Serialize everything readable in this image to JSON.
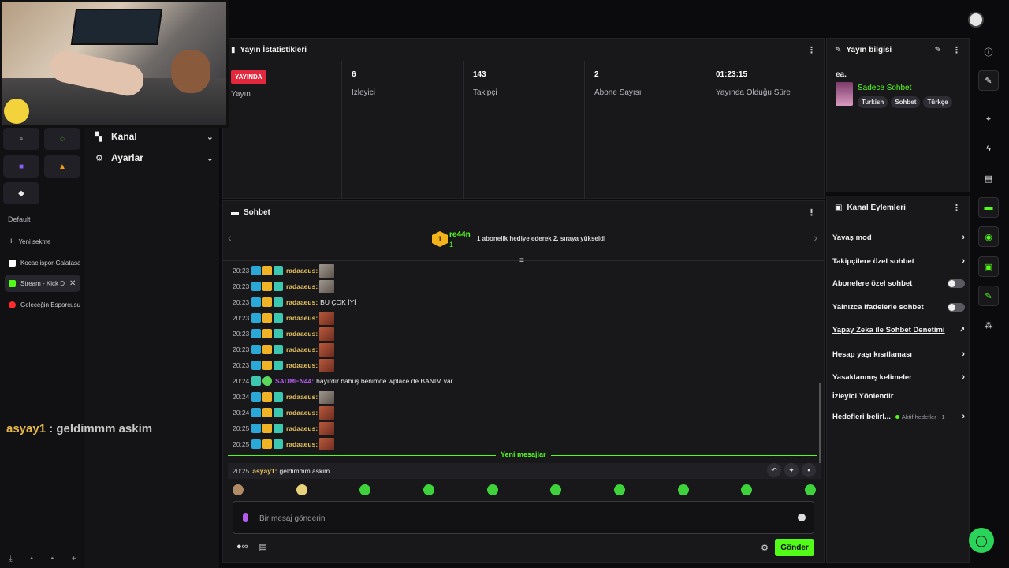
{
  "browser_sidebar": {
    "section_label": "Default",
    "tabs": [
      {
        "label": "Yeni sekme",
        "icon": "plus-icon"
      },
      {
        "label": "Kocaelispor-Galatasaray",
        "icon": "f-logo-icon"
      },
      {
        "label": "Stream - Kick D",
        "icon": "kick-logo-icon",
        "active": true
      },
      {
        "label": "Geleceğin Esporcusu",
        "icon": "youtube-icon"
      }
    ]
  },
  "kick_nav": {
    "items": [
      {
        "label": "Kanal",
        "icon": "kick-icon"
      },
      {
        "label": "Ayarlar",
        "icon": "gear-icon"
      }
    ]
  },
  "stats": {
    "title": "Yayın İstatistikleri",
    "live_badge": "YAYINDA",
    "cells": [
      {
        "value": "",
        "label": "Yayın"
      },
      {
        "value": "6",
        "label": "İzleyici"
      },
      {
        "value": "143",
        "label": "Takipçi"
      },
      {
        "value": "2",
        "label": "Abone Sayısı"
      },
      {
        "value": "01:23:15",
        "label": "Yayında Olduğu Süre"
      }
    ]
  },
  "stream_info": {
    "title": "Yayın bilgisi",
    "stream_title": "ea.",
    "category": "Sadece Sohbet",
    "tags": [
      "Turkish",
      "Sohbet",
      "Türkçe"
    ]
  },
  "chat": {
    "title": "Sohbet",
    "pinned": {
      "level": "1",
      "user": "re44n",
      "count": "1",
      "text": "1 abonelik hediye ederek 2. sıraya yükseldi"
    },
    "messages": [
      {
        "time": "20:23",
        "user": "radaaeus:",
        "body": "",
        "emote": true,
        "gray": true
      },
      {
        "time": "20:23",
        "user": "radaaeus:",
        "body": "",
        "emote": true,
        "gray": true
      },
      {
        "time": "20:23",
        "user": "radaaeus:",
        "body": "BU ÇOK İYİ",
        "emote": false
      },
      {
        "time": "20:23",
        "user": "radaaeus:",
        "body": "",
        "emote": true
      },
      {
        "time": "20:23",
        "user": "radaaeus:",
        "body": "",
        "emote": true
      },
      {
        "time": "20:23",
        "user": "radaaeus:",
        "body": "",
        "emote": true
      },
      {
        "time": "20:23",
        "user": "radaaeus:",
        "body": "",
        "emote": true
      },
      {
        "time": "20:24",
        "user": "SADMEN44:",
        "body": "hayırdır babuş benimde wplace de BANIM var",
        "emote": false,
        "purple": true
      },
      {
        "time": "20:24",
        "user": "radaaeus:",
        "body": "",
        "emote": true,
        "gray": true
      },
      {
        "time": "20:24",
        "user": "radaaeus:",
        "body": "",
        "emote": true
      },
      {
        "time": "20:25",
        "user": "radaaeus:",
        "body": "",
        "emote": true
      },
      {
        "time": "20:25",
        "user": "radaaeus:",
        "body": "",
        "emote": true
      }
    ],
    "new_messages_label": "Yeni mesajlar",
    "highlighted": {
      "time": "20:25",
      "user": "asyay1:",
      "body": "geldimmm askim"
    },
    "input_placeholder": "Bir mesaj gönderin",
    "send_label": "Gönder"
  },
  "channel_actions": {
    "title": "Kanal Eylemleri",
    "items": [
      {
        "label": "Yavaş mod",
        "control": "chevron"
      },
      {
        "label": "Takipçilere özel sohbet",
        "control": "chevron"
      },
      {
        "label": "Abonelere özel sohbet",
        "control": "toggle"
      },
      {
        "label": "Yalnızca ifadelerle sohbet",
        "control": "toggle"
      },
      {
        "label": "Yapay Zeka ile Sohbet Denetimi",
        "control": "external"
      },
      {
        "label": "Hesap yaşı kısıtlaması",
        "control": "chevron"
      },
      {
        "label": "Yasaklanmış kelimeler",
        "control": "chevron"
      },
      {
        "label": "İzleyici Yönlendir",
        "control": "none"
      },
      {
        "label": "Hedefleri belirl...",
        "control": "chevron",
        "sub": "Aktif hedefler - 1"
      }
    ]
  },
  "overlay": {
    "user": "asyay1",
    "text": ": geldimmm askim"
  },
  "colors": {
    "accent": "#53fc18",
    "live": "#e3283e",
    "panel": "#18181b"
  }
}
